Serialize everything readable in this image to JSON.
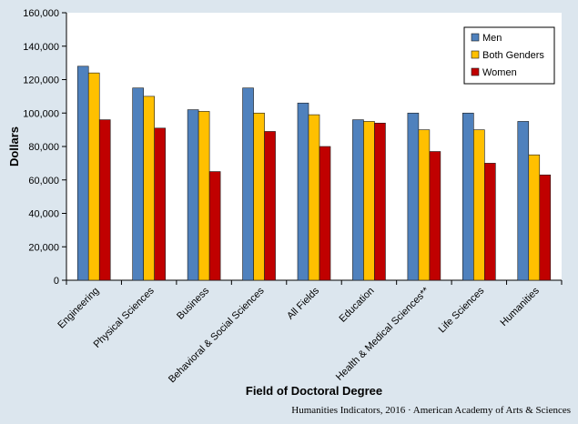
{
  "chart_data": {
    "type": "bar",
    "title": "",
    "xlabel": "Field of Doctoral Degree",
    "ylabel": "Dollars",
    "ylim": [
      0,
      160000
    ],
    "y_ticks": [
      0,
      20000,
      40000,
      60000,
      80000,
      100000,
      120000,
      140000,
      160000
    ],
    "y_tick_labels": [
      "0",
      "20,000",
      "40,000",
      "60,000",
      "80,000",
      "100,000",
      "120,000",
      "140,000",
      "160,000"
    ],
    "grid": false,
    "legend_position": "top-right",
    "categories": [
      "Engineering",
      "Physical Sciences",
      "Business",
      "Behavioral & Social Sciences",
      "All Fields",
      "Education",
      "Health & Medical Sciences**",
      "Life Sciences",
      "Humanities"
    ],
    "series": [
      {
        "name": "Men",
        "color": "#4f81bd",
        "values": [
          128000,
          115000,
          102000,
          115000,
          106000,
          96000,
          100000,
          100000,
          95000
        ]
      },
      {
        "name": "Both Genders",
        "color": "#ffc000",
        "values": [
          124000,
          110000,
          101000,
          100000,
          99000,
          95000,
          90000,
          90000,
          75000
        ]
      },
      {
        "name": "Women",
        "color": "#c00000",
        "values": [
          96000,
          91000,
          65000,
          89000,
          80000,
          94000,
          77000,
          70000,
          63000
        ]
      }
    ]
  },
  "credit": "Humanities Indicators, 2016 · American Academy of Arts & Sciences"
}
